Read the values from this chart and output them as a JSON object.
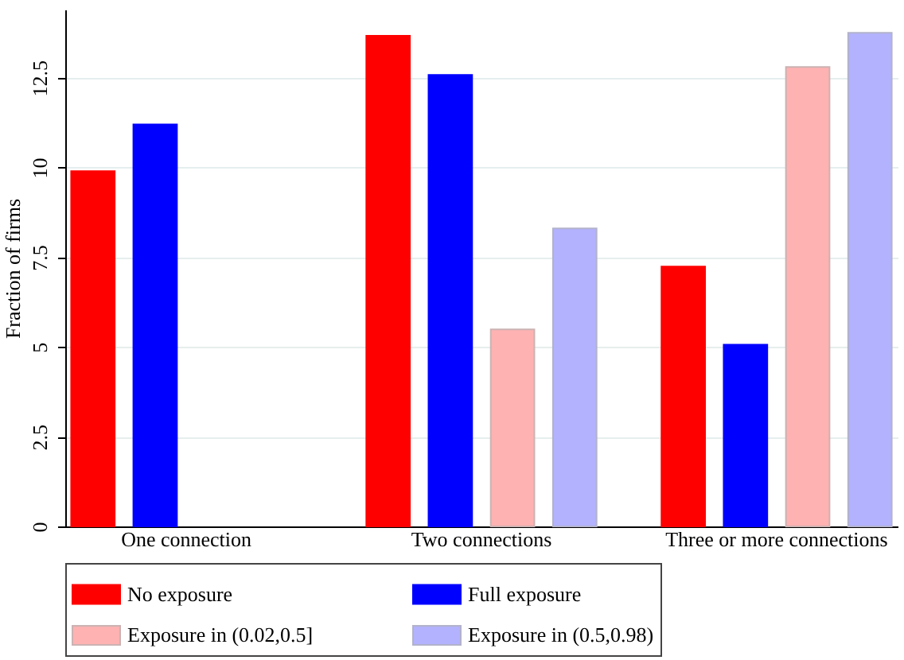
{
  "chart_data": {
    "type": "bar",
    "ylabel": "Fraction of firms",
    "categories": [
      "One connection",
      "Two connections",
      "Three or more connections"
    ],
    "series": [
      {
        "name": "No exposure",
        "color": "#ff0000",
        "values": [
          9.9,
          13.67,
          7.24
        ]
      },
      {
        "name": "Full exposure",
        "color": "#0000ff",
        "values": [
          11.2,
          12.58,
          5.06
        ]
      },
      {
        "name": "Exposure in (0.02,0.5]",
        "color": "#ffb2b2",
        "values": [
          null,
          5.49,
          12.8
        ]
      },
      {
        "name": "Exposure in (0.5,0.98)",
        "color": "#b2b2ff",
        "values": [
          null,
          8.3,
          13.75
        ]
      }
    ],
    "ylim": [
      0,
      14.4
    ],
    "yticks": [
      0,
      2.5,
      5,
      7.5,
      10,
      12.5
    ],
    "grid": "y",
    "legend": "bottom"
  }
}
